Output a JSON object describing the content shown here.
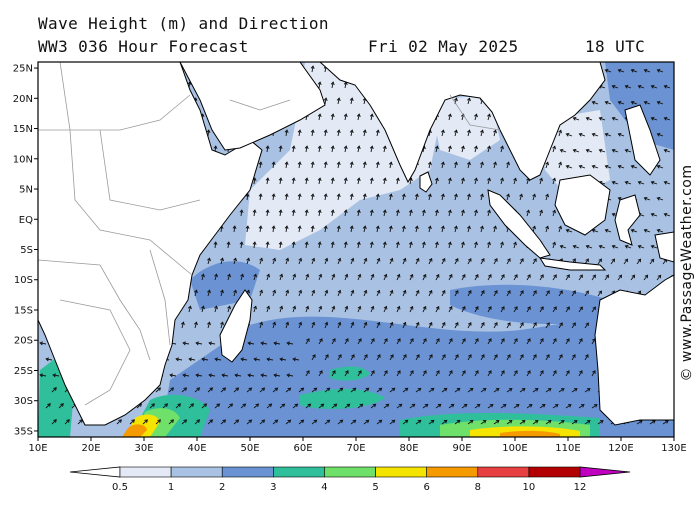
{
  "header": {
    "title": "Wave Height (m) and Direction",
    "subtitle": "WW3 036 Hour Forecast",
    "date": "Fri 02 May 2025",
    "time": "18 UTC"
  },
  "credit": "© www.PassageWeather.com",
  "axes": {
    "lat_labels": [
      "25N",
      "20N",
      "15N",
      "10N",
      "5N",
      "EQ",
      "5S",
      "10S",
      "15S",
      "20S",
      "25S",
      "30S",
      "35S"
    ],
    "lon_labels": [
      "10E",
      "20E",
      "30E",
      "40E",
      "50E",
      "60E",
      "70E",
      "80E",
      "90E",
      "100E",
      "110E",
      "120E",
      "130E"
    ],
    "lat_range": [
      -36,
      26
    ],
    "lon_range": [
      10,
      130
    ]
  },
  "legend": {
    "units": "m",
    "tick_labels": [
      "0.5",
      "1",
      "2",
      "3",
      "4",
      "5",
      "6",
      "8",
      "10",
      "12"
    ],
    "colors": [
      "#e3eaf6",
      "#a9c2e3",
      "#6b93d3",
      "#2fbf9b",
      "#6fe06a",
      "#f4e400",
      "#f59a00",
      "#e64040",
      "#b30000",
      "#c000c0"
    ]
  },
  "colors": {
    "land": "#ffffff",
    "coast": "#000000",
    "border": "#9a9a9a",
    "arrow": "#111111",
    "sea_base": "#a9c2e3"
  }
}
